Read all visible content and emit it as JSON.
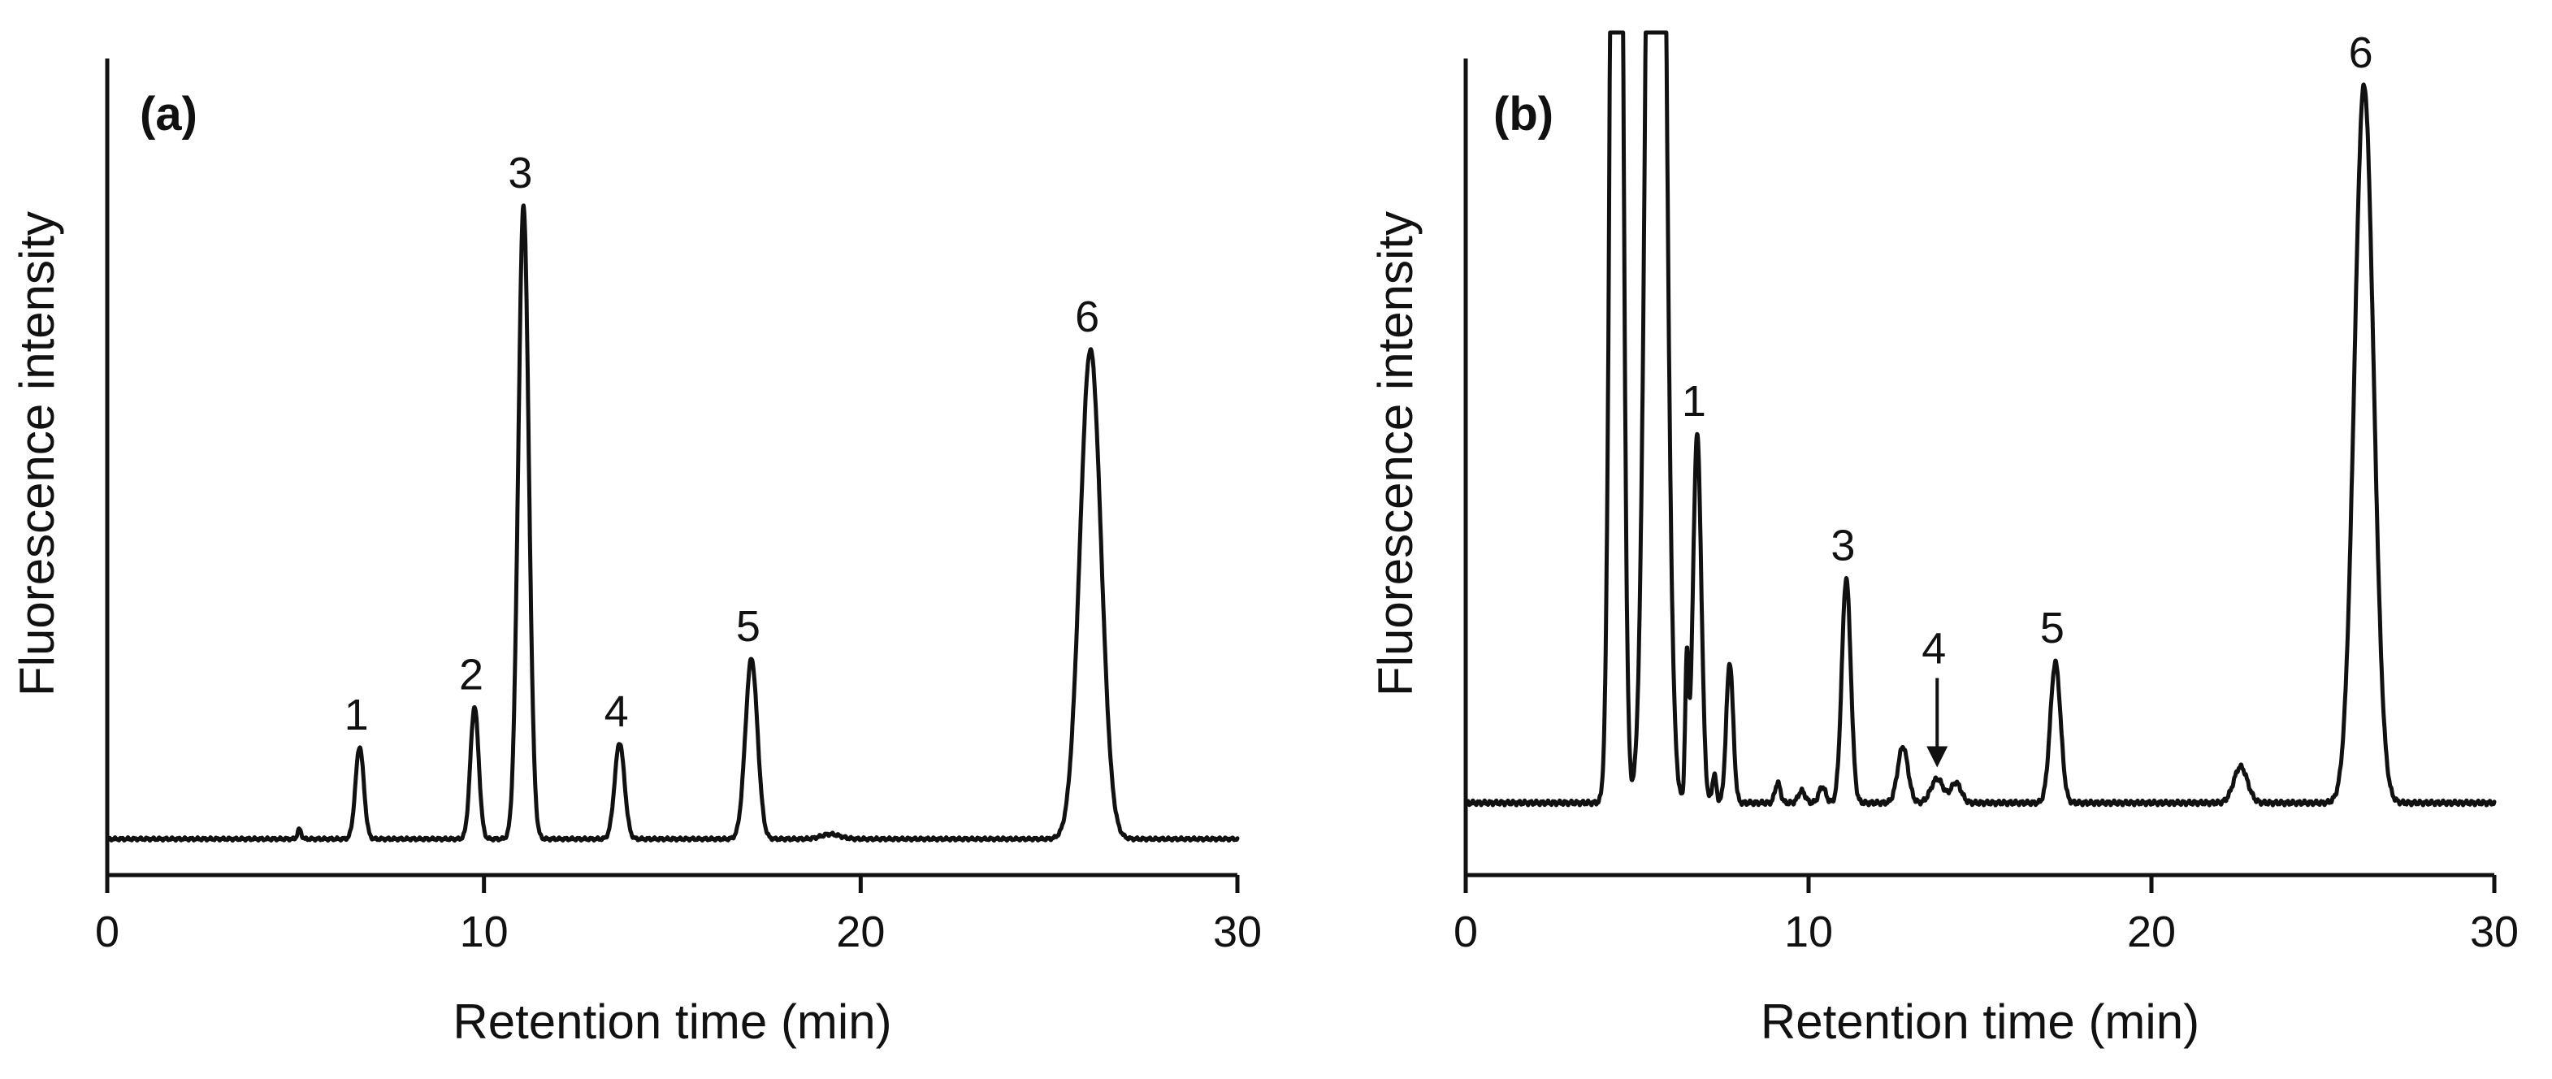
{
  "chart_data": [
    {
      "type": "line",
      "panel_label": "(a)",
      "xlabel": "Retention time (min)",
      "ylabel": "Fluorescence intensity",
      "xlim": [
        0,
        30
      ],
      "xticks": [
        0,
        10,
        20,
        30
      ],
      "xtick_labels": [
        "0",
        "10",
        "20",
        "30"
      ],
      "ylim": [
        0,
        1.05
      ],
      "y_ticks_labeled": false,
      "grid": false,
      "legend": "none",
      "baseline": 0.045,
      "noise": 0.002,
      "series": [
        {
          "peaks": [
            {
              "label": "",
              "x": 5.1,
              "height": 0.012,
              "sigma": 0.05,
              "arrow": false
            },
            {
              "label": "1",
              "x": 6.7,
              "height": 0.115,
              "sigma": 0.11,
              "arrow": false
            },
            {
              "label": "2",
              "x": 9.75,
              "height": 0.165,
              "sigma": 0.11,
              "arrow": false
            },
            {
              "label": "3",
              "x": 11.05,
              "height": 0.79,
              "sigma": 0.14,
              "arrow": false
            },
            {
              "label": "4",
              "x": 13.6,
              "height": 0.12,
              "sigma": 0.13,
              "arrow": false
            },
            {
              "label": "5",
              "x": 17.1,
              "height": 0.225,
              "sigma": 0.16,
              "arrow": false
            },
            {
              "label": "",
              "x": 19.2,
              "height": 0.006,
              "sigma": 0.25,
              "arrow": false
            },
            {
              "label": "6",
              "x": 26.1,
              "height": 0.61,
              "sigma": 0.28,
              "arrow": false
            }
          ]
        }
      ]
    },
    {
      "type": "line",
      "panel_label": "(b)",
      "xlabel": "Retention time (min)",
      "ylabel": "Fluorescence intensity",
      "xlim": [
        0,
        30
      ],
      "xticks": [
        0,
        10,
        20,
        30
      ],
      "xtick_labels": [
        "0",
        "10",
        "20",
        "30"
      ],
      "ylim": [
        0,
        1.05
      ],
      "y_ticks_labeled": false,
      "grid": false,
      "legend": "none",
      "baseline": 0.09,
      "noise": 0.003,
      "series": [
        {
          "peaks": [
            {
              "label": "",
              "x": 4.4,
              "height": 2.5,
              "sigma": 0.14,
              "arrow": false
            },
            {
              "label": "",
              "x": 5.55,
              "height": 2.5,
              "sigma": 0.22,
              "arrow": false
            },
            {
              "label": "",
              "x": 6.45,
              "height": 0.17,
              "sigma": 0.05,
              "arrow": false
            },
            {
              "label": "1",
              "x": 6.75,
              "height": 0.46,
              "sigma": 0.12,
              "arrow": false
            },
            {
              "label": "",
              "x": 7.25,
              "height": 0.035,
              "sigma": 0.06,
              "arrow": false
            },
            {
              "label": "",
              "x": 7.7,
              "height": 0.175,
              "sigma": 0.1,
              "arrow": false
            },
            {
              "label": "",
              "x": 9.1,
              "height": 0.025,
              "sigma": 0.08,
              "arrow": false
            },
            {
              "label": "",
              "x": 9.8,
              "height": 0.015,
              "sigma": 0.1,
              "arrow": false
            },
            {
              "label": "",
              "x": 10.4,
              "height": 0.02,
              "sigma": 0.1,
              "arrow": false
            },
            {
              "label": "3",
              "x": 11.1,
              "height": 0.28,
              "sigma": 0.13,
              "arrow": false
            },
            {
              "label": "",
              "x": 12.75,
              "height": 0.07,
              "sigma": 0.15,
              "arrow": false
            },
            {
              "label": "4",
              "x": 13.75,
              "height": 0.03,
              "sigma": 0.18,
              "arrow": true
            },
            {
              "label": "",
              "x": 14.3,
              "height": 0.025,
              "sigma": 0.15,
              "arrow": false
            },
            {
              "label": "5",
              "x": 17.2,
              "height": 0.175,
              "sigma": 0.15,
              "arrow": false
            },
            {
              "label": "",
              "x": 22.6,
              "height": 0.045,
              "sigma": 0.2,
              "arrow": false
            },
            {
              "label": "6",
              "x": 26.2,
              "height": 0.895,
              "sigma": 0.28,
              "arrow": false
            }
          ]
        }
      ]
    }
  ]
}
